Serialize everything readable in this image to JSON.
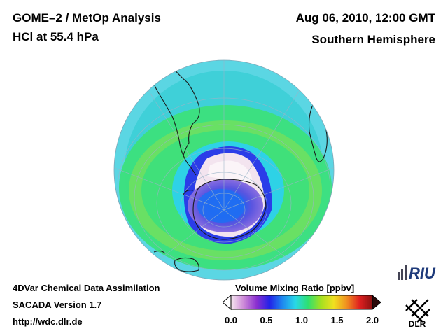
{
  "header": {
    "title_line1": "GOME–2 / MetOp Analysis",
    "title_line2": "HCl at 55.4 hPa",
    "date_line": "Aug 06, 2010, 12:00 GMT",
    "region_line": "Southern Hemisphere"
  },
  "footer": {
    "line1": "4DVar Chemical Data Assimilation",
    "line2": "SACADA Version 1.7",
    "line3": "http://wdc.dlr.de"
  },
  "colorbar": {
    "title": "Volume Mixing Ratio [ppbv]",
    "ticks": [
      "0.0",
      "0.5",
      "1.0",
      "1.5",
      "2.0"
    ],
    "min": 0.0,
    "max": 2.0,
    "colors": [
      "#f6e9f0",
      "#cc88d8",
      "#8a2fd0",
      "#2222e8",
      "#1e88f0",
      "#28d8e8",
      "#2ee070",
      "#a4e020",
      "#f0e020",
      "#f09020",
      "#e02020",
      "#8a1010"
    ]
  },
  "logos": {
    "riu_text": "RIU",
    "dlr_text": "DLR"
  },
  "map_data": {
    "projection": "orthographic",
    "hemisphere": "southern",
    "variable": "HCl",
    "level_hpa": 55.4,
    "features": [
      "ozone-hole vortex with low HCl core",
      "South America",
      "Africa",
      "Antarctica"
    ]
  }
}
